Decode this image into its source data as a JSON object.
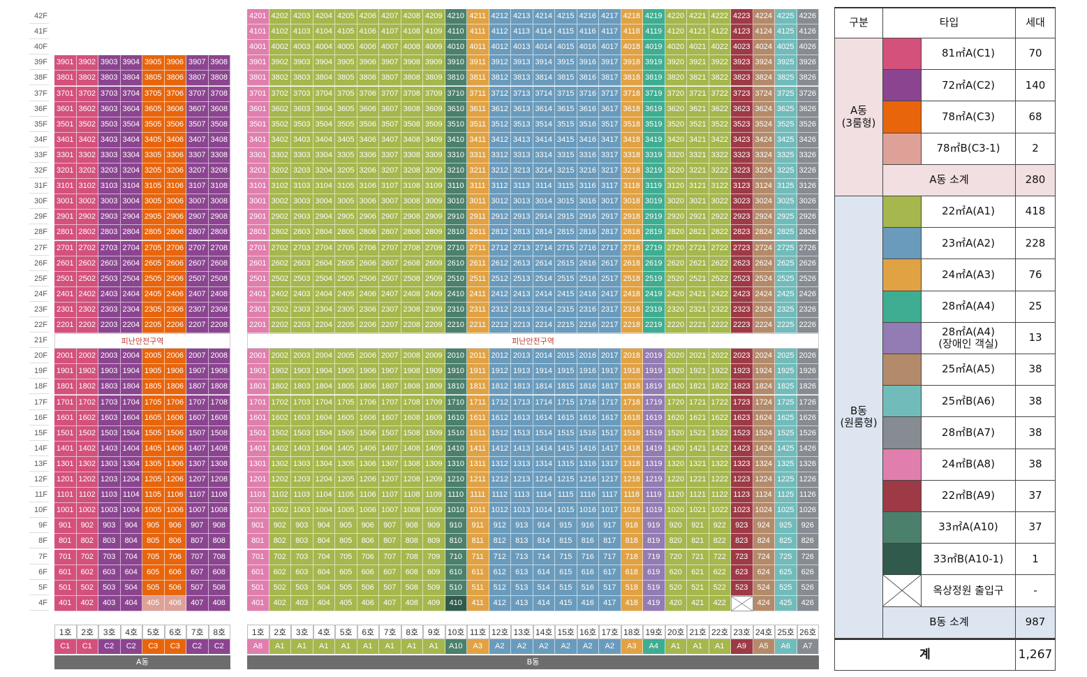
{
  "colors": {
    "C1": "#d4517c",
    "C2": "#8b4590",
    "C3": "#e8650c",
    "C3-1": "#dea197",
    "A1": "#a5b74d",
    "A2": "#6a9bbc",
    "A3": "#e1a244",
    "A4": "#3fad92",
    "A4H": "#937bb3",
    "A5": "#b48b6a",
    "A6": "#71bcbb",
    "A7": "#868c91",
    "A8": "#e07fae",
    "A9": "#9d3a46",
    "A10": "#4b806c",
    "A10-1": "#2f5a4c"
  },
  "floors": [
    "42F",
    "41F",
    "40F",
    "39F",
    "38F",
    "37F",
    "36F",
    "35F",
    "34F",
    "33F",
    "32F",
    "31F",
    "30F",
    "29F",
    "28F",
    "27F",
    "26F",
    "25F",
    "24F",
    "23F",
    "22F",
    "21F",
    "20F",
    "19F",
    "18F",
    "17F",
    "16F",
    "15F",
    "14F",
    "13F",
    "12F",
    "11F",
    "10F",
    "9F",
    "8F",
    "7F",
    "6F",
    "5F",
    "4F"
  ],
  "refuge_label": "피난안전구역",
  "building_a": {
    "name": "A동",
    "unit_labels": [
      "1호",
      "2호",
      "3호",
      "4호",
      "5호",
      "6호",
      "7호",
      "8호"
    ],
    "types": [
      "C1",
      "C1",
      "C2",
      "C2",
      "C3",
      "C3",
      "C2",
      "C2"
    ],
    "top_floor": 39
  },
  "building_b": {
    "name": "B동",
    "unit_labels": [
      "1호",
      "2호",
      "3호",
      "4호",
      "5호",
      "6호",
      "7호",
      "8호",
      "9호",
      "10호",
      "11호",
      "12호",
      "13호",
      "14호",
      "15호",
      "16호",
      "17호",
      "18호",
      "19호",
      "20호",
      "21호",
      "22호",
      "23호",
      "24호",
      "25호",
      "26호"
    ],
    "types": [
      "A8",
      "A1",
      "A1",
      "A1",
      "A1",
      "A1",
      "A1",
      "A1",
      "A1",
      "A10",
      "A3",
      "A2",
      "A2",
      "A2",
      "A2",
      "A2",
      "A2",
      "A3",
      "A4",
      "A1",
      "A1",
      "A1",
      "A9",
      "A5",
      "A6",
      "A7"
    ],
    "top_floor": 42
  },
  "legend": {
    "headers": [
      "구분",
      "타입",
      "세대"
    ],
    "group_a_label": "A동\n(3룸형)",
    "group_b_label": "B동\n(원룸형)",
    "rows_a": [
      {
        "color": "#d4517c",
        "type": "81㎡A(C1)",
        "count": "70"
      },
      {
        "color": "#8b4590",
        "type": "72㎡A(C2)",
        "count": "140"
      },
      {
        "color": "#e8650c",
        "type": "78㎡A(C3)",
        "count": "68"
      },
      {
        "color": "#dea197",
        "type": "78㎡B(C3-1)",
        "count": "2"
      }
    ],
    "subtotal_a": {
      "label": "A동 소계",
      "count": "280"
    },
    "rows_b": [
      {
        "color": "#a5b74d",
        "type": "22㎡A(A1)",
        "count": "418"
      },
      {
        "color": "#6a9bbc",
        "type": "23㎡A(A2)",
        "count": "228"
      },
      {
        "color": "#e1a244",
        "type": "24㎡A(A3)",
        "count": "76"
      },
      {
        "color": "#3fad92",
        "type": "28㎡A(A4)",
        "count": "25"
      },
      {
        "color": "#937bb3",
        "type": "28㎡A(A4)\n(장애인 객실)",
        "count": "13"
      },
      {
        "color": "#b48b6a",
        "type": "25㎡A(A5)",
        "count": "38"
      },
      {
        "color": "#71bcbb",
        "type": "25㎡B(A6)",
        "count": "38"
      },
      {
        "color": "#868c91",
        "type": "28㎡B(A7)",
        "count": "38"
      },
      {
        "color": "#e07fae",
        "type": "24㎡B(A8)",
        "count": "38"
      },
      {
        "color": "#9d3a46",
        "type": "22㎡B(A9)",
        "count": "37"
      },
      {
        "color": "#4b806c",
        "type": "33㎡A(A10)",
        "count": "37"
      },
      {
        "color": "#2f5a4c",
        "type": "33㎡B(A10-1)",
        "count": "1"
      },
      {
        "color": "x",
        "type": "옥상정원 출입구",
        "count": "-"
      }
    ],
    "subtotal_b": {
      "label": "B동 소계",
      "count": "987"
    },
    "total": {
      "label": "계",
      "count": "1,267"
    }
  }
}
